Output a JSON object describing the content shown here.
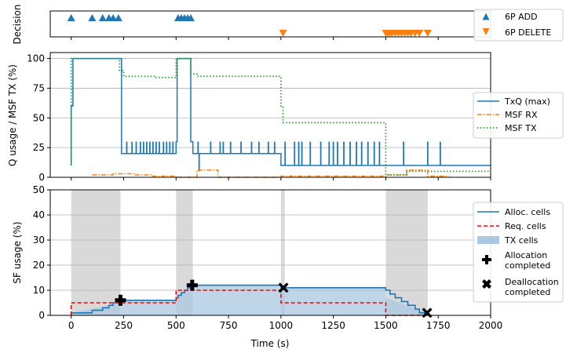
{
  "colors": {
    "blue": "#1f77b4",
    "orange": "#ff7f0e",
    "green": "#2ca02c",
    "red": "#ff0000",
    "tx_fill": "#aac8e0",
    "shade": "#d9d9d9",
    "grid": "#b0b0b0"
  },
  "chart_data": [
    {
      "type": "scatter",
      "ylabel": "Decision",
      "xlim": [
        -100,
        2000
      ],
      "legend_position": "right",
      "series": [
        {
          "name": "6P ADD",
          "marker": "triangle-up",
          "color": "#1f77b4",
          "row": "top",
          "x": [
            0,
            100,
            150,
            180,
            200,
            225,
            510,
            525,
            540,
            555,
            570
          ]
        },
        {
          "name": "6P DELETE",
          "marker": "triangle-down",
          "color": "#ff7f0e",
          "row": "bottom",
          "x": [
            1010,
            1500,
            1510,
            1520,
            1530,
            1545,
            1560,
            1575,
            1590,
            1605,
            1620,
            1640,
            1660,
            1700
          ]
        }
      ]
    },
    {
      "type": "line",
      "ylabel": "Q usage / MSF TX (%)",
      "xlim": [
        -100,
        2000
      ],
      "ylim": [
        0,
        105
      ],
      "yticks": [
        0,
        25,
        50,
        75,
        100
      ],
      "grid": true,
      "legend_position": "right",
      "series": [
        {
          "name": "TxQ (max)",
          "style": "solid",
          "color": "#1f77b4",
          "x": [
            0,
            0,
            8,
            8,
            240,
            240,
            500,
            500,
            505,
            505,
            570,
            570,
            580,
            580,
            1000,
            1000,
            1500,
            1500,
            2000
          ],
          "y": [
            10,
            60,
            60,
            100,
            100,
            20,
            20,
            30,
            30,
            100,
            100,
            30,
            30,
            20,
            20,
            10,
            10,
            10,
            10
          ],
          "spikes": {
            "base_segments": [
              [
                240,
                500,
                20
              ],
              [
                580,
                1000,
                20
              ],
              [
                1000,
                2000,
                10
              ]
            ],
            "height": 30,
            "x": [
              265,
              290,
              310,
              330,
              345,
              360,
              375,
              390,
              405,
              420,
              440,
              455,
              470,
              485,
              605,
              665,
              710,
              725,
              760,
              810,
              860,
              895,
              940,
              970,
              1020,
              1065,
              1085,
              1100,
              1140,
              1190,
              1230,
              1250,
              1270,
              1300,
              1330,
              1360,
              1385,
              1415,
              1445,
              1470,
              1585,
              1700,
              1760
            ]
          },
          "dips": [
            [
              610,
              5
            ]
          ]
        },
        {
          "name": "MSF RX",
          "style": "dashdot",
          "color": "#ff7f0e",
          "x": [
            100,
            200,
            200,
            300,
            300,
            380,
            380,
            500,
            500,
            600,
            600,
            700,
            700,
            1000,
            1000,
            1500,
            1500,
            1600,
            1600,
            1700,
            1700,
            1800
          ],
          "y": [
            2,
            2,
            3,
            3,
            2,
            2,
            1,
            1,
            0,
            0,
            6,
            6,
            0,
            0,
            1,
            1,
            2,
            2,
            6,
            6,
            1,
            1
          ]
        },
        {
          "name": "MSF TX",
          "style": "dotted",
          "color": "#2ca02c",
          "x": [
            0,
            0,
            230,
            230,
            250,
            250,
            400,
            400,
            500,
            500,
            570,
            570,
            600,
            600,
            1000,
            1000,
            1010,
            1010,
            1500,
            1500,
            1600,
            1600,
            2000
          ],
          "y": [
            10,
            100,
            100,
            90,
            90,
            85,
            85,
            84,
            84,
            100,
            100,
            87,
            87,
            85,
            85,
            60,
            60,
            46,
            46,
            2,
            2,
            5,
            5
          ]
        }
      ]
    },
    {
      "type": "area",
      "ylabel": "SF usage (%)",
      "xlabel": "Time (s)",
      "xlim": [
        -100,
        2000
      ],
      "ylim": [
        0,
        50
      ],
      "xticks": [
        0,
        250,
        500,
        750,
        1000,
        1250,
        1500,
        1750,
        2000
      ],
      "yticks": [
        0,
        10,
        20,
        30,
        40,
        50
      ],
      "grid": true,
      "legend_position": "right",
      "shaded_intervals": [
        [
          0,
          235
        ],
        [
          500,
          580
        ],
        [
          1000,
          1018
        ],
        [
          1500,
          1700
        ]
      ],
      "series": [
        {
          "name": "Alloc. cells",
          "style": "solid",
          "color": "#1f77b4",
          "x": [
            0,
            100,
            100,
            150,
            150,
            180,
            180,
            200,
            200,
            225,
            225,
            240,
            240,
            500,
            500,
            510,
            510,
            525,
            525,
            540,
            540,
            555,
            555,
            570,
            570,
            1000,
            1000,
            1500,
            1500,
            1520,
            1520,
            1545,
            1545,
            1575,
            1575,
            1605,
            1605,
            1640,
            1640,
            1660,
            1660,
            1700
          ],
          "y": [
            1,
            1,
            2,
            2,
            3,
            3,
            4,
            4,
            5,
            5,
            5.5,
            5.5,
            6,
            6,
            7,
            7,
            8,
            8,
            9,
            9,
            10,
            10,
            11,
            11,
            12,
            12,
            11,
            11,
            10,
            10,
            8.5,
            8.5,
            7,
            7,
            5.5,
            5.5,
            4,
            4,
            2.5,
            2.5,
            1,
            1
          ]
        },
        {
          "name": "Req. cells",
          "style": "dashed",
          "color": "#ff0000",
          "x": [
            0,
            0,
            500,
            500,
            1000,
            1000,
            1500,
            1500,
            1700
          ],
          "y": [
            0,
            5,
            5,
            10,
            10,
            5,
            5,
            0,
            0
          ]
        },
        {
          "name": "TX cells",
          "style": "fill",
          "color": "#aac8e0",
          "x": [
            0,
            240,
            240,
            500,
            500,
            570,
            570,
            1000,
            1000,
            1500,
            1500,
            1700
          ],
          "y": [
            1,
            5,
            6,
            6,
            7,
            11,
            12,
            12,
            11,
            11,
            7,
            1
          ]
        },
        {
          "name": "Allocation completed",
          "style": "marker-plus",
          "color": "#000000",
          "x": [
            235,
            577
          ],
          "y": [
            6,
            12
          ]
        },
        {
          "name": "Deallocation completed",
          "style": "marker-x",
          "color": "#000000",
          "x": [
            1012,
            1697
          ],
          "y": [
            11,
            1
          ]
        }
      ]
    }
  ],
  "legends": {
    "top": [
      "6P ADD",
      "6P DELETE"
    ],
    "middle": [
      "TxQ (max)",
      "MSF RX",
      "MSF TX"
    ],
    "bottom": [
      "Alloc. cells",
      "Req. cells",
      "TX cells",
      "Allocation",
      "completed",
      "Deallocation",
      "completed"
    ]
  }
}
